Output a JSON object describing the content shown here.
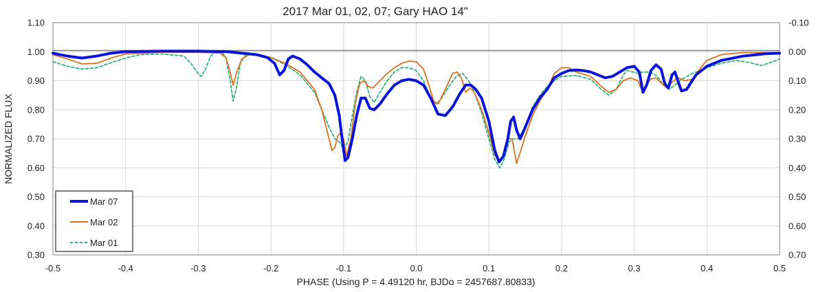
{
  "chart_data": {
    "type": "line",
    "title": "2017 Mar 01, 02, 07; Gary HAO 14\"",
    "xlabel": "PHASE (Using P = 4.49120 hr, BJDo = 2457687.80833)",
    "ylabel": "NORMALIZED FLUX",
    "xlim": [
      -0.5,
      0.5
    ],
    "ylim": [
      0.3,
      1.1
    ],
    "y2lim": [
      0.7,
      -0.1
    ],
    "x_ticks": [
      "-0.5",
      "-0.4",
      "-0.3",
      "-0.2",
      "-0.1",
      "0.0",
      "0.1",
      "0.2",
      "0.3",
      "0.4",
      "0.5"
    ],
    "y_ticks": [
      "1.10",
      "1.00",
      "0.90",
      "0.80",
      "0.70",
      "0.60",
      "0.50",
      "0.40",
      "0.30"
    ],
    "y2_ticks": [
      "-0.10",
      "0.00",
      "0.10",
      "0.20",
      "0.30",
      "0.40",
      "0.50",
      "0.60",
      "0.70"
    ],
    "grid": true,
    "legend_position": "bottom-left",
    "series": [
      {
        "name": "Mar 07",
        "color": "#0a14d8",
        "style": "solid-thick",
        "points": [
          [
            -0.5,
            0.995
          ],
          [
            -0.48,
            0.985
          ],
          [
            -0.46,
            0.978
          ],
          [
            -0.44,
            0.985
          ],
          [
            -0.42,
            0.995
          ],
          [
            -0.4,
            1.0
          ],
          [
            -0.35,
            1.002
          ],
          [
            -0.3,
            1.002
          ],
          [
            -0.26,
            1.0
          ],
          [
            -0.24,
            0.995
          ],
          [
            -0.22,
            0.99
          ],
          [
            -0.205,
            0.98
          ],
          [
            -0.195,
            0.96
          ],
          [
            -0.188,
            0.92
          ],
          [
            -0.182,
            0.935
          ],
          [
            -0.176,
            0.975
          ],
          [
            -0.17,
            0.985
          ],
          [
            -0.16,
            0.975
          ],
          [
            -0.15,
            0.955
          ],
          [
            -0.14,
            0.93
          ],
          [
            -0.13,
            0.91
          ],
          [
            -0.12,
            0.89
          ],
          [
            -0.112,
            0.85
          ],
          [
            -0.106,
            0.78
          ],
          [
            -0.102,
            0.7
          ],
          [
            -0.098,
            0.625
          ],
          [
            -0.094,
            0.635
          ],
          [
            -0.088,
            0.7
          ],
          [
            -0.082,
            0.78
          ],
          [
            -0.076,
            0.84
          ],
          [
            -0.07,
            0.84
          ],
          [
            -0.064,
            0.805
          ],
          [
            -0.058,
            0.8
          ],
          [
            -0.05,
            0.82
          ],
          [
            -0.04,
            0.855
          ],
          [
            -0.03,
            0.885
          ],
          [
            -0.02,
            0.9
          ],
          [
            -0.01,
            0.905
          ],
          [
            0.0,
            0.9
          ],
          [
            0.01,
            0.885
          ],
          [
            0.02,
            0.84
          ],
          [
            0.03,
            0.785
          ],
          [
            0.04,
            0.78
          ],
          [
            0.05,
            0.81
          ],
          [
            0.06,
            0.855
          ],
          [
            0.068,
            0.885
          ],
          [
            0.075,
            0.885
          ],
          [
            0.082,
            0.87
          ],
          [
            0.09,
            0.84
          ],
          [
            0.1,
            0.76
          ],
          [
            0.108,
            0.66
          ],
          [
            0.114,
            0.62
          ],
          [
            0.12,
            0.64
          ],
          [
            0.126,
            0.7
          ],
          [
            0.13,
            0.76
          ],
          [
            0.134,
            0.775
          ],
          [
            0.138,
            0.73
          ],
          [
            0.143,
            0.7
          ],
          [
            0.15,
            0.74
          ],
          [
            0.16,
            0.8
          ],
          [
            0.17,
            0.84
          ],
          [
            0.18,
            0.87
          ],
          [
            0.19,
            0.91
          ],
          [
            0.2,
            0.925
          ],
          [
            0.21,
            0.935
          ],
          [
            0.22,
            0.937
          ],
          [
            0.23,
            0.935
          ],
          [
            0.24,
            0.93
          ],
          [
            0.25,
            0.92
          ],
          [
            0.26,
            0.91
          ],
          [
            0.27,
            0.915
          ],
          [
            0.28,
            0.93
          ],
          [
            0.29,
            0.945
          ],
          [
            0.3,
            0.95
          ],
          [
            0.307,
            0.93
          ],
          [
            0.312,
            0.86
          ],
          [
            0.317,
            0.885
          ],
          [
            0.323,
            0.935
          ],
          [
            0.33,
            0.955
          ],
          [
            0.337,
            0.94
          ],
          [
            0.342,
            0.89
          ],
          [
            0.347,
            0.875
          ],
          [
            0.352,
            0.92
          ],
          [
            0.356,
            0.93
          ],
          [
            0.36,
            0.9
          ],
          [
            0.365,
            0.865
          ],
          [
            0.372,
            0.87
          ],
          [
            0.385,
            0.92
          ],
          [
            0.4,
            0.95
          ],
          [
            0.42,
            0.97
          ],
          [
            0.45,
            0.985
          ],
          [
            0.48,
            0.993
          ],
          [
            0.5,
            0.995
          ]
        ]
      },
      {
        "name": "Mar 02",
        "color": "#d9701e",
        "style": "solid",
        "points": [
          [
            -0.5,
            0.99
          ],
          [
            -0.48,
            0.975
          ],
          [
            -0.46,
            0.958
          ],
          [
            -0.44,
            0.96
          ],
          [
            -0.42,
            0.978
          ],
          [
            -0.4,
            0.992
          ],
          [
            -0.35,
            0.998
          ],
          [
            -0.3,
            0.998
          ],
          [
            -0.27,
            0.995
          ],
          [
            -0.262,
            0.98
          ],
          [
            -0.256,
            0.93
          ],
          [
            -0.252,
            0.885
          ],
          [
            -0.247,
            0.93
          ],
          [
            -0.24,
            0.975
          ],
          [
            -0.23,
            0.99
          ],
          [
            -0.22,
            0.988
          ],
          [
            -0.2,
            0.98
          ],
          [
            -0.18,
            0.96
          ],
          [
            -0.16,
            0.93
          ],
          [
            -0.14,
            0.87
          ],
          [
            -0.13,
            0.8
          ],
          [
            -0.122,
            0.72
          ],
          [
            -0.116,
            0.66
          ],
          [
            -0.112,
            0.67
          ],
          [
            -0.108,
            0.71
          ],
          [
            -0.104,
            0.72
          ],
          [
            -0.1,
            0.7
          ],
          [
            -0.096,
            0.64
          ],
          [
            -0.09,
            0.7
          ],
          [
            -0.084,
            0.82
          ],
          [
            -0.078,
            0.89
          ],
          [
            -0.072,
            0.9
          ],
          [
            -0.066,
            0.88
          ],
          [
            -0.06,
            0.875
          ],
          [
            -0.05,
            0.9
          ],
          [
            -0.04,
            0.925
          ],
          [
            -0.03,
            0.945
          ],
          [
            -0.02,
            0.96
          ],
          [
            -0.01,
            0.968
          ],
          [
            0.0,
            0.965
          ],
          [
            0.01,
            0.94
          ],
          [
            0.018,
            0.88
          ],
          [
            0.024,
            0.83
          ],
          [
            0.03,
            0.82
          ],
          [
            0.04,
            0.87
          ],
          [
            0.05,
            0.925
          ],
          [
            0.056,
            0.93
          ],
          [
            0.062,
            0.91
          ],
          [
            0.068,
            0.86
          ],
          [
            0.074,
            0.875
          ],
          [
            0.08,
            0.86
          ],
          [
            0.09,
            0.8
          ],
          [
            0.1,
            0.72
          ],
          [
            0.108,
            0.645
          ],
          [
            0.114,
            0.62
          ],
          [
            0.12,
            0.64
          ],
          [
            0.126,
            0.7
          ],
          [
            0.132,
            0.7
          ],
          [
            0.138,
            0.615
          ],
          [
            0.144,
            0.66
          ],
          [
            0.15,
            0.71
          ],
          [
            0.16,
            0.78
          ],
          [
            0.17,
            0.83
          ],
          [
            0.18,
            0.87
          ],
          [
            0.19,
            0.925
          ],
          [
            0.2,
            0.945
          ],
          [
            0.21,
            0.945
          ],
          [
            0.22,
            0.93
          ],
          [
            0.24,
            0.915
          ],
          [
            0.255,
            0.88
          ],
          [
            0.265,
            0.86
          ],
          [
            0.275,
            0.87
          ],
          [
            0.285,
            0.9
          ],
          [
            0.295,
            0.91
          ],
          [
            0.305,
            0.9
          ],
          [
            0.31,
            0.87
          ],
          [
            0.315,
            0.875
          ],
          [
            0.322,
            0.905
          ],
          [
            0.33,
            0.91
          ],
          [
            0.34,
            0.885
          ],
          [
            0.345,
            0.875
          ],
          [
            0.352,
            0.895
          ],
          [
            0.36,
            0.91
          ],
          [
            0.37,
            0.9
          ],
          [
            0.38,
            0.905
          ],
          [
            0.39,
            0.94
          ],
          [
            0.4,
            0.97
          ],
          [
            0.42,
            0.99
          ],
          [
            0.45,
            0.997
          ],
          [
            0.5,
            0.997
          ]
        ]
      },
      {
        "name": "Mar 01",
        "color": "#2fb07a",
        "style": "dashed",
        "points": [
          [
            -0.5,
            0.965
          ],
          [
            -0.48,
            0.95
          ],
          [
            -0.46,
            0.94
          ],
          [
            -0.44,
            0.945
          ],
          [
            -0.42,
            0.962
          ],
          [
            -0.4,
            0.978
          ],
          [
            -0.38,
            0.99
          ],
          [
            -0.35,
            0.992
          ],
          [
            -0.32,
            0.985
          ],
          [
            -0.31,
            0.96
          ],
          [
            -0.302,
            0.93
          ],
          [
            -0.296,
            0.915
          ],
          [
            -0.29,
            0.94
          ],
          [
            -0.283,
            0.985
          ],
          [
            -0.275,
            1.0
          ],
          [
            -0.268,
            1.0
          ],
          [
            -0.262,
            0.98
          ],
          [
            -0.256,
            0.9
          ],
          [
            -0.252,
            0.83
          ],
          [
            -0.248,
            0.87
          ],
          [
            -0.242,
            0.96
          ],
          [
            -0.235,
            0.99
          ],
          [
            -0.22,
            0.992
          ],
          [
            -0.2,
            0.98
          ],
          [
            -0.18,
            0.955
          ],
          [
            -0.16,
            0.92
          ],
          [
            -0.14,
            0.86
          ],
          [
            -0.13,
            0.8
          ],
          [
            -0.12,
            0.74
          ],
          [
            -0.112,
            0.7
          ],
          [
            -0.106,
            0.69
          ],
          [
            -0.1,
            0.665
          ],
          [
            -0.094,
            0.69
          ],
          [
            -0.088,
            0.78
          ],
          [
            -0.082,
            0.86
          ],
          [
            -0.076,
            0.915
          ],
          [
            -0.07,
            0.9
          ],
          [
            -0.064,
            0.845
          ],
          [
            -0.058,
            0.825
          ],
          [
            -0.05,
            0.86
          ],
          [
            -0.04,
            0.9
          ],
          [
            -0.03,
            0.93
          ],
          [
            -0.02,
            0.945
          ],
          [
            -0.01,
            0.945
          ],
          [
            0.0,
            0.935
          ],
          [
            0.01,
            0.9
          ],
          [
            0.02,
            0.84
          ],
          [
            0.028,
            0.82
          ],
          [
            0.035,
            0.84
          ],
          [
            0.045,
            0.88
          ],
          [
            0.055,
            0.915
          ],
          [
            0.064,
            0.925
          ],
          [
            0.072,
            0.9
          ],
          [
            0.08,
            0.86
          ],
          [
            0.09,
            0.79
          ],
          [
            0.1,
            0.7
          ],
          [
            0.108,
            0.63
          ],
          [
            0.115,
            0.6
          ],
          [
            0.121,
            0.63
          ],
          [
            0.128,
            0.69
          ],
          [
            0.134,
            0.7
          ],
          [
            0.14,
            0.7
          ],
          [
            0.15,
            0.74
          ],
          [
            0.16,
            0.81
          ],
          [
            0.17,
            0.85
          ],
          [
            0.18,
            0.88
          ],
          [
            0.19,
            0.9
          ],
          [
            0.2,
            0.915
          ],
          [
            0.22,
            0.918
          ],
          [
            0.24,
            0.905
          ],
          [
            0.255,
            0.87
          ],
          [
            0.265,
            0.85
          ],
          [
            0.275,
            0.87
          ],
          [
            0.285,
            0.92
          ],
          [
            0.29,
            0.935
          ],
          [
            0.298,
            0.93
          ],
          [
            0.305,
            0.925
          ],
          [
            0.312,
            0.93
          ],
          [
            0.322,
            0.93
          ],
          [
            0.332,
            0.915
          ],
          [
            0.34,
            0.885
          ],
          [
            0.348,
            0.87
          ],
          [
            0.356,
            0.885
          ],
          [
            0.365,
            0.905
          ],
          [
            0.38,
            0.925
          ],
          [
            0.4,
            0.945
          ],
          [
            0.42,
            0.96
          ],
          [
            0.44,
            0.97
          ],
          [
            0.46,
            0.962
          ],
          [
            0.475,
            0.952
          ],
          [
            0.49,
            0.965
          ],
          [
            0.5,
            0.975
          ]
        ]
      }
    ]
  }
}
